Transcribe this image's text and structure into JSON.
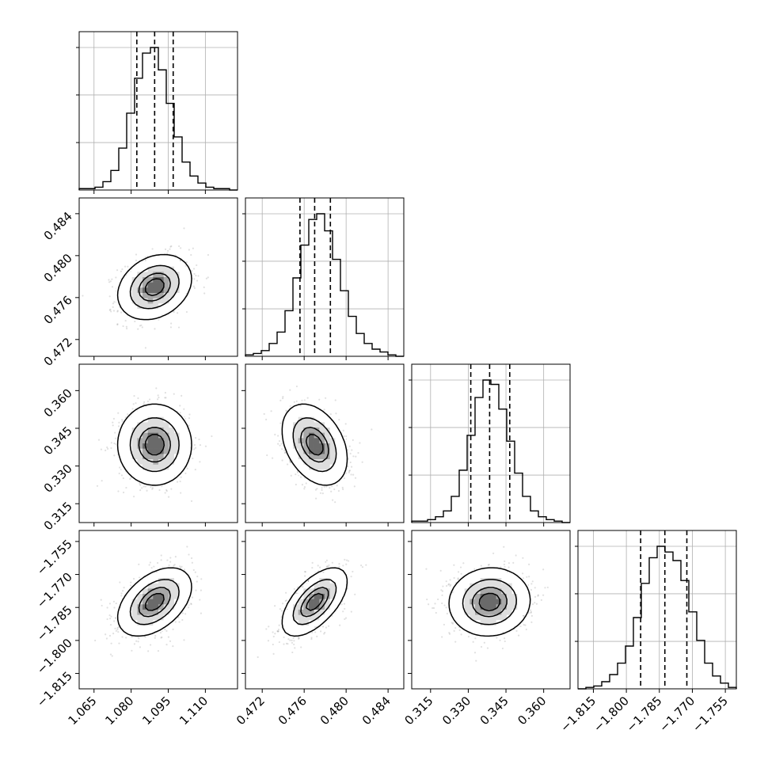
{
  "chart_data": {
    "type": "corner",
    "parameters": [
      {
        "range": [
          1.059,
          1.123
        ],
        "ticks": [
          1.065,
          1.08,
          1.095,
          1.11
        ],
        "tick_labels": [
          "1.065",
          "1.080",
          "1.095",
          "1.110"
        ],
        "quantiles": [
          1.0823,
          1.0895,
          1.097
        ],
        "mean": 1.0895,
        "sd": 0.0072
      },
      {
        "range": [
          0.4704,
          0.4855
        ],
        "ticks": [
          0.472,
          0.476,
          0.48,
          0.484
        ],
        "tick_labels": [
          "0.472",
          "0.476",
          "0.480",
          "0.484"
        ],
        "quantiles": [
          0.4756,
          0.477,
          0.4785
        ],
        "mean": 0.477,
        "sd": 0.0015
      },
      {
        "range": [
          0.3075,
          0.3705
        ],
        "ticks": [
          0.315,
          0.33,
          0.345,
          0.36
        ],
        "tick_labels": [
          "0.315",
          "0.330",
          "0.345",
          "0.360"
        ],
        "quantiles": [
          0.331,
          0.3385,
          0.3465
        ],
        "mean": 0.3385,
        "sd": 0.0078
      },
      {
        "range": [
          -1.822,
          -1.75
        ],
        "ticks": [
          -1.815,
          -1.8,
          -1.785,
          -1.77,
          -1.755
        ],
        "tick_labels": [
          "−1.815",
          "−1.800",
          "−1.785",
          "−1.770",
          "−1.755"
        ],
        "quantiles": [
          -1.7935,
          -1.7825,
          -1.7725
        ],
        "mean": -1.7825,
        "sd": 0.0075
      }
    ],
    "histograms": [
      [
        1,
        1,
        2,
        6,
        14,
        30,
        55,
        80,
        98,
        102,
        86,
        62,
        38,
        20,
        10,
        5,
        2,
        1,
        1,
        0
      ],
      [
        1,
        2,
        4,
        9,
        17,
        32,
        55,
        78,
        96,
        100,
        88,
        68,
        46,
        28,
        16,
        9,
        5,
        3,
        1,
        0
      ],
      [
        1,
        1,
        2,
        4,
        8,
        18,
        36,
        60,
        86,
        98,
        95,
        78,
        56,
        34,
        18,
        8,
        4,
        2,
        1,
        0
      ],
      [
        0,
        1,
        2,
        5,
        10,
        18,
        30,
        50,
        74,
        92,
        100,
        96,
        90,
        76,
        54,
        34,
        18,
        9,
        4,
        1
      ]
    ],
    "correlations": {
      "1-0": 0.25,
      "2-0": 0.0,
      "2-1": -0.35,
      "3-0": 0.45,
      "3-1": 0.6,
      "3-2": 0.05
    },
    "contour_levels": [
      0.118,
      0.393,
      0.675,
      0.865
    ],
    "grid": true
  }
}
